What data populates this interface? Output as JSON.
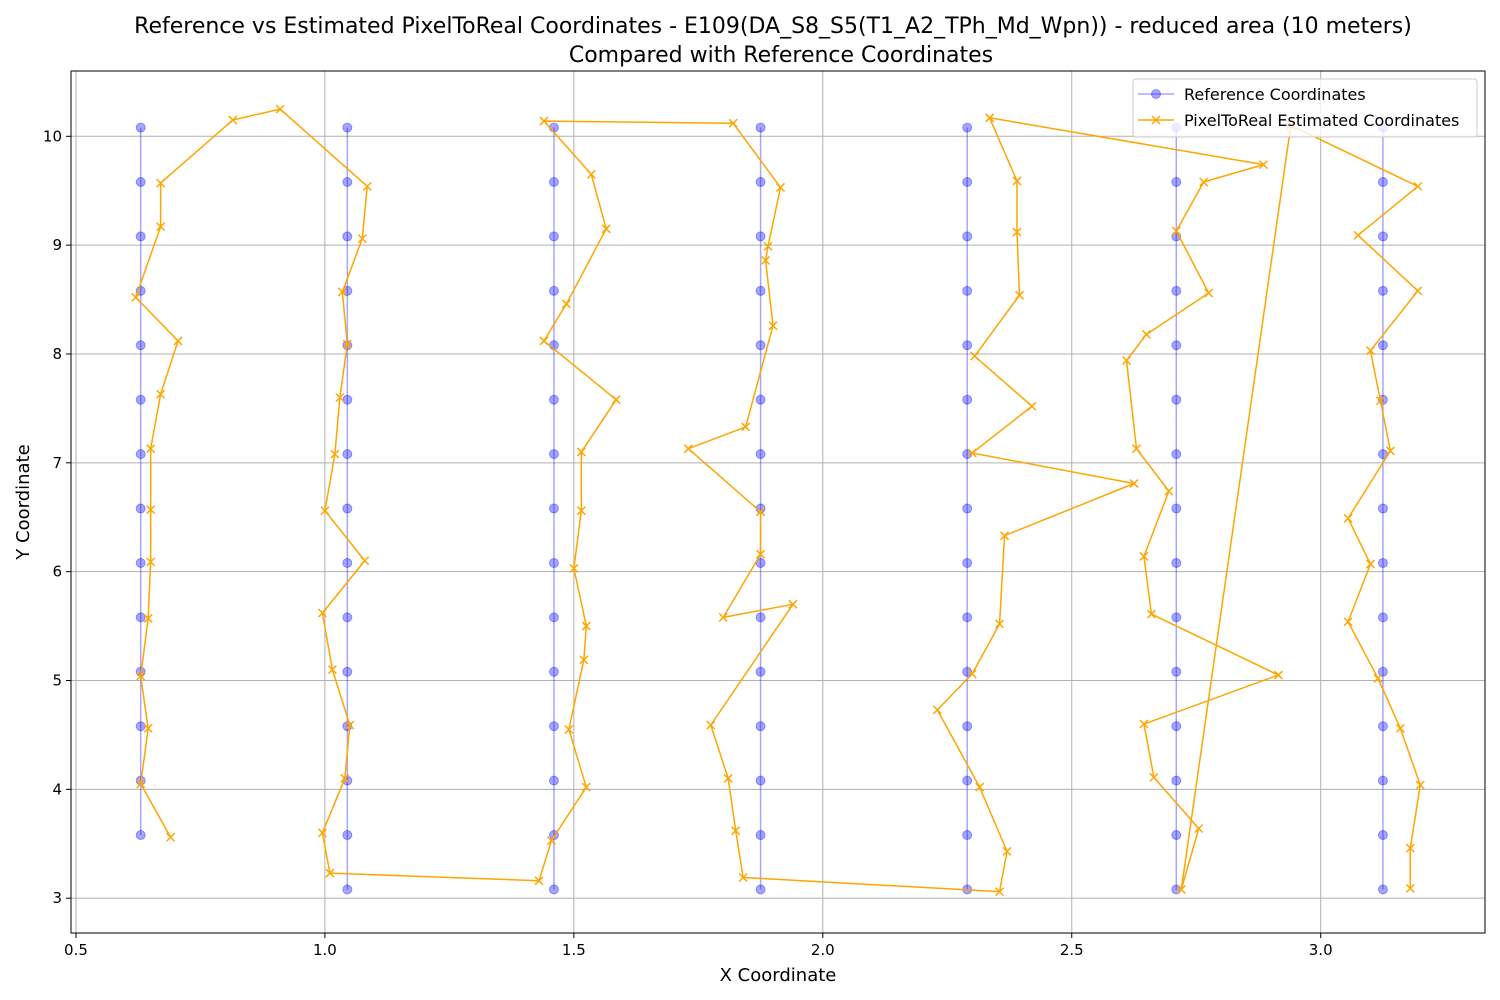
{
  "chart_data": {
    "type": "line",
    "title": "Reference vs Estimated PixelToReal Coordinates - E109(DA_S8_S5(T1_A2_TPh_Md_Wpn)) - reduced area (10 meters)",
    "subtitle": "Compared with Reference Coordinates",
    "xlabel": "X Coordinate",
    "ylabel": "Y Coordinate",
    "xlim": [
      0.49,
      3.33
    ],
    "ylim": [
      2.68,
      10.6
    ],
    "xticks": [
      0.5,
      1.0,
      1.5,
      2.0,
      2.5,
      3.0
    ],
    "xtick_labels": [
      "0.5",
      "1.0",
      "1.5",
      "2.0",
      "2.5",
      "3.0"
    ],
    "yticks": [
      3,
      4,
      5,
      6,
      7,
      8,
      9,
      10
    ],
    "ytick_labels": [
      "3",
      "4",
      "5",
      "6",
      "7",
      "8",
      "9",
      "10"
    ],
    "grid": true,
    "legend_position": "top-right",
    "series": [
      {
        "name": "Reference Coordinates",
        "color": "#0000ff",
        "marker": "circle",
        "points": [
          [
            0.63,
            3.58
          ],
          [
            0.63,
            4.08
          ],
          [
            0.63,
            4.58
          ],
          [
            0.63,
            5.08
          ],
          [
            0.63,
            5.58
          ],
          [
            0.63,
            6.08
          ],
          [
            0.63,
            6.58
          ],
          [
            0.63,
            7.08
          ],
          [
            0.63,
            7.58
          ],
          [
            0.63,
            8.08
          ],
          [
            0.63,
            8.58
          ],
          [
            0.63,
            9.08
          ],
          [
            0.63,
            9.58
          ],
          [
            0.63,
            10.08
          ],
          [
            1.045,
            3.08
          ],
          [
            1.045,
            3.58
          ],
          [
            1.045,
            4.08
          ],
          [
            1.045,
            4.58
          ],
          [
            1.045,
            5.08
          ],
          [
            1.045,
            5.58
          ],
          [
            1.045,
            6.08
          ],
          [
            1.045,
            6.58
          ],
          [
            1.045,
            7.08
          ],
          [
            1.045,
            7.58
          ],
          [
            1.045,
            8.08
          ],
          [
            1.045,
            8.58
          ],
          [
            1.045,
            9.08
          ],
          [
            1.045,
            9.58
          ],
          [
            1.045,
            10.08
          ],
          [
            1.46,
            3.08
          ],
          [
            1.46,
            3.58
          ],
          [
            1.46,
            4.08
          ],
          [
            1.46,
            4.58
          ],
          [
            1.46,
            5.08
          ],
          [
            1.46,
            5.58
          ],
          [
            1.46,
            6.08
          ],
          [
            1.46,
            6.58
          ],
          [
            1.46,
            7.08
          ],
          [
            1.46,
            7.58
          ],
          [
            1.46,
            8.08
          ],
          [
            1.46,
            8.58
          ],
          [
            1.46,
            9.08
          ],
          [
            1.46,
            9.58
          ],
          [
            1.46,
            10.08
          ],
          [
            1.875,
            3.08
          ],
          [
            1.875,
            3.58
          ],
          [
            1.875,
            4.08
          ],
          [
            1.875,
            4.58
          ],
          [
            1.875,
            5.08
          ],
          [
            1.875,
            5.58
          ],
          [
            1.875,
            6.08
          ],
          [
            1.875,
            6.58
          ],
          [
            1.875,
            7.08
          ],
          [
            1.875,
            7.58
          ],
          [
            1.875,
            8.08
          ],
          [
            1.875,
            8.58
          ],
          [
            1.875,
            9.08
          ],
          [
            1.875,
            9.58
          ],
          [
            1.875,
            10.08
          ],
          [
            2.29,
            3.08
          ],
          [
            2.29,
            3.58
          ],
          [
            2.29,
            4.08
          ],
          [
            2.29,
            4.58
          ],
          [
            2.29,
            5.08
          ],
          [
            2.29,
            5.58
          ],
          [
            2.29,
            6.08
          ],
          [
            2.29,
            6.58
          ],
          [
            2.29,
            7.08
          ],
          [
            2.29,
            7.58
          ],
          [
            2.29,
            8.08
          ],
          [
            2.29,
            8.58
          ],
          [
            2.29,
            9.08
          ],
          [
            2.29,
            9.58
          ],
          [
            2.29,
            10.08
          ],
          [
            2.71,
            3.08
          ],
          [
            2.71,
            3.58
          ],
          [
            2.71,
            4.08
          ],
          [
            2.71,
            4.58
          ],
          [
            2.71,
            5.08
          ],
          [
            2.71,
            5.58
          ],
          [
            2.71,
            6.08
          ],
          [
            2.71,
            6.58
          ],
          [
            2.71,
            7.08
          ],
          [
            2.71,
            7.58
          ],
          [
            2.71,
            8.08
          ],
          [
            2.71,
            8.58
          ],
          [
            2.71,
            9.08
          ],
          [
            2.71,
            9.58
          ],
          [
            2.71,
            10.08
          ],
          [
            3.125,
            3.08
          ],
          [
            3.125,
            3.58
          ],
          [
            3.125,
            4.08
          ],
          [
            3.125,
            4.58
          ],
          [
            3.125,
            5.08
          ],
          [
            3.125,
            5.58
          ],
          [
            3.125,
            6.08
          ],
          [
            3.125,
            6.58
          ],
          [
            3.125,
            7.08
          ],
          [
            3.125,
            7.58
          ],
          [
            3.125,
            8.08
          ],
          [
            3.125,
            8.58
          ],
          [
            3.125,
            9.08
          ],
          [
            3.125,
            9.58
          ],
          [
            3.125,
            10.08
          ]
        ]
      },
      {
        "name": "PixelToReal Estimated Coordinates",
        "color": "#ffa500",
        "marker": "x",
        "points": [
          [
            0.69,
            3.56
          ],
          [
            0.63,
            4.05
          ],
          [
            0.645,
            4.56
          ],
          [
            0.63,
            5.04
          ],
          [
            0.645,
            5.57
          ],
          [
            0.65,
            6.09
          ],
          [
            0.65,
            6.57
          ],
          [
            0.65,
            7.13
          ],
          [
            0.67,
            7.63
          ],
          [
            0.705,
            8.12
          ],
          [
            0.62,
            8.52
          ],
          [
            0.67,
            9.17
          ],
          [
            0.67,
            9.57
          ],
          [
            0.815,
            10.15
          ],
          [
            0.91,
            10.25
          ],
          [
            1.085,
            9.54
          ],
          [
            1.075,
            9.06
          ],
          [
            1.035,
            8.57
          ],
          [
            1.045,
            8.09
          ],
          [
            1.03,
            7.6
          ],
          [
            1.02,
            7.08
          ],
          [
            1.0,
            6.56
          ],
          [
            1.08,
            6.1
          ],
          [
            0.995,
            5.62
          ],
          [
            1.015,
            5.1
          ],
          [
            1.05,
            4.59
          ],
          [
            1.04,
            4.1
          ],
          [
            0.995,
            3.6
          ],
          [
            1.01,
            3.23
          ],
          [
            1.43,
            3.16
          ],
          [
            1.455,
            3.53
          ],
          [
            1.525,
            4.02
          ],
          [
            1.49,
            4.55
          ],
          [
            1.52,
            5.19
          ],
          [
            1.525,
            5.5
          ],
          [
            1.5,
            6.03
          ],
          [
            1.515,
            6.56
          ],
          [
            1.515,
            7.1
          ],
          [
            1.585,
            7.58
          ],
          [
            1.44,
            8.12
          ],
          [
            1.485,
            8.46
          ],
          [
            1.565,
            9.15
          ],
          [
            1.535,
            9.65
          ],
          [
            1.44,
            10.14
          ],
          [
            1.82,
            10.12
          ],
          [
            1.915,
            9.53
          ],
          [
            1.89,
            8.99
          ],
          [
            1.885,
            8.86
          ],
          [
            1.9,
            8.26
          ],
          [
            1.845,
            7.33
          ],
          [
            1.73,
            7.13
          ],
          [
            1.875,
            6.55
          ],
          [
            1.875,
            6.16
          ],
          [
            1.8,
            5.58
          ],
          [
            1.94,
            5.7
          ],
          [
            1.775,
            4.59
          ],
          [
            1.81,
            4.1
          ],
          [
            1.825,
            3.62
          ],
          [
            1.84,
            3.19
          ],
          [
            2.355,
            3.06
          ],
          [
            2.37,
            3.43
          ],
          [
            2.315,
            4.02
          ],
          [
            2.23,
            4.73
          ],
          [
            2.3,
            5.06
          ],
          [
            2.355,
            5.52
          ],
          [
            2.365,
            6.33
          ],
          [
            2.625,
            6.81
          ],
          [
            2.3,
            7.09
          ],
          [
            2.42,
            7.52
          ],
          [
            2.305,
            7.98
          ],
          [
            2.395,
            8.54
          ],
          [
            2.39,
            9.12
          ],
          [
            2.39,
            9.59
          ],
          [
            2.335,
            10.17
          ],
          [
            2.885,
            9.74
          ],
          [
            2.765,
            9.58
          ],
          [
            2.71,
            9.13
          ],
          [
            2.775,
            8.56
          ],
          [
            2.65,
            8.18
          ],
          [
            2.61,
            7.94
          ],
          [
            2.63,
            7.13
          ],
          [
            2.695,
            6.74
          ],
          [
            2.645,
            6.14
          ],
          [
            2.66,
            5.61
          ],
          [
            2.915,
            5.05
          ],
          [
            2.645,
            4.6
          ],
          [
            2.665,
            4.11
          ],
          [
            2.755,
            3.64
          ],
          [
            2.72,
            3.08
          ],
          [
            2.94,
            10.1
          ],
          [
            3.195,
            9.54
          ],
          [
            3.075,
            9.09
          ],
          [
            3.195,
            8.58
          ],
          [
            3.1,
            8.03
          ],
          [
            3.12,
            7.57
          ],
          [
            3.14,
            7.11
          ],
          [
            3.055,
            6.49
          ],
          [
            3.1,
            6.07
          ],
          [
            3.055,
            5.54
          ],
          [
            3.115,
            5.02
          ],
          [
            3.16,
            4.56
          ],
          [
            3.2,
            4.04
          ],
          [
            3.18,
            3.46
          ],
          [
            3.18,
            3.09
          ]
        ]
      }
    ]
  }
}
